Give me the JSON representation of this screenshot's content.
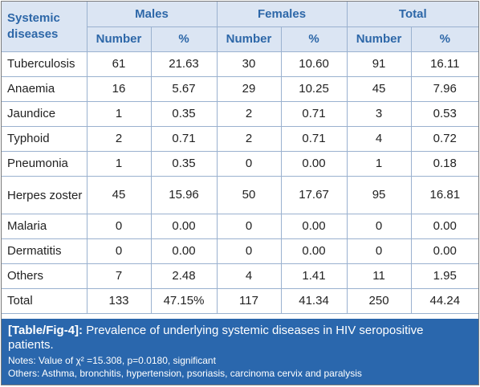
{
  "header": {
    "row_label": "Systemic diseases",
    "groups": [
      "Males",
      "Females",
      "Total"
    ],
    "sub_headers": [
      "Number",
      "%",
      "Number",
      "%",
      "Number",
      "%"
    ]
  },
  "rows": [
    {
      "label": "Tuberculosis",
      "values": [
        "61",
        "21.63",
        "30",
        "10.60",
        "91",
        "16.11"
      ]
    },
    {
      "label": "Anaemia",
      "values": [
        "16",
        "5.67",
        "29",
        "10.25",
        "45",
        "7.96"
      ]
    },
    {
      "label": "Jaundice",
      "values": [
        "1",
        "0.35",
        "2",
        "0.71",
        "3",
        "0.53"
      ]
    },
    {
      "label": "Typhoid",
      "values": [
        "2",
        "0.71",
        "2",
        "0.71",
        "4",
        "0.72"
      ]
    },
    {
      "label": "Pneumonia",
      "values": [
        "1",
        "0.35",
        "0",
        "0.00",
        "1",
        "0.18"
      ]
    },
    {
      "label": "Herpes zoster",
      "values": [
        "45",
        "15.96",
        "50",
        "17.67",
        "95",
        "16.81"
      ]
    },
    {
      "label": "Malaria",
      "values": [
        "0",
        "0.00",
        "0",
        "0.00",
        "0",
        "0.00"
      ]
    },
    {
      "label": "Dermatitis",
      "values": [
        "0",
        "0.00",
        "0",
        "0.00",
        "0",
        "0.00"
      ]
    },
    {
      "label": "Others",
      "values": [
        "7",
        "2.48",
        "4",
        "1.41",
        "11",
        "1.95"
      ]
    },
    {
      "label": "Total",
      "values": [
        "133",
        "47.15%",
        "117",
        "41.34",
        "250",
        "44.24"
      ]
    }
  ],
  "caption": {
    "tag": "[Table/Fig-4]:",
    "title": " Prevalence of underlying systemic diseases in HIV seropositive patients.",
    "notes": "Notes: Value of χ² =15.308, p=0.0180, significant",
    "others": "Others: Asthma, bronchitis, hypertension, psoriasis, carcinoma cervix and paralysis"
  },
  "colors": {
    "header_bg": "#dbe5f3",
    "header_text": "#2d67a8",
    "grid_line": "#9ab1cf",
    "caption_bg": "#2a67ad",
    "caption_text": "#ffffff"
  }
}
